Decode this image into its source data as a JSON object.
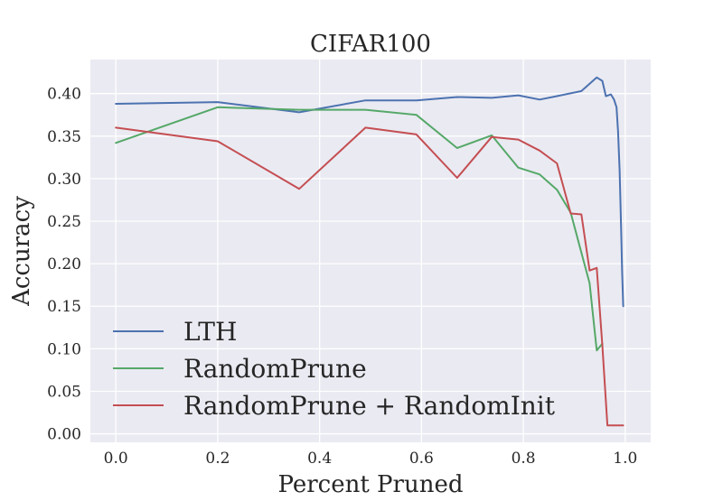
{
  "chart_data": {
    "type": "line",
    "title": "CIFAR100",
    "xlabel": "Percent Pruned",
    "ylabel": "Accuracy",
    "xlim": [
      -0.05,
      1.05
    ],
    "ylim": [
      -0.01,
      0.44
    ],
    "xticks": [
      0.0,
      0.2,
      0.4,
      0.6,
      0.8,
      1.0
    ],
    "xtick_labels": [
      "0.0",
      "0.2",
      "0.4",
      "0.6",
      "0.8",
      "1.0"
    ],
    "yticks": [
      0.0,
      0.05,
      0.1,
      0.15,
      0.2,
      0.25,
      0.3,
      0.35,
      0.4
    ],
    "ytick_labels": [
      "0.00",
      "0.05",
      "0.10",
      "0.15",
      "0.20",
      "0.25",
      "0.30",
      "0.35",
      "0.40"
    ],
    "grid": true,
    "legend_position": "lower-left",
    "background": "#eaeaf2",
    "series": [
      {
        "name": "LTH",
        "color": "#4c72b0",
        "x": [
          0.0,
          0.2,
          0.36,
          0.49,
          0.59,
          0.67,
          0.738,
          0.79,
          0.832,
          0.866,
          0.914,
          0.944,
          0.955,
          0.962,
          0.972,
          0.978,
          0.983,
          0.986,
          0.989,
          0.992,
          0.994,
          0.996
        ],
        "y": [
          0.388,
          0.39,
          0.378,
          0.392,
          0.392,
          0.396,
          0.395,
          0.398,
          0.393,
          0.397,
          0.403,
          0.419,
          0.415,
          0.397,
          0.399,
          0.393,
          0.384,
          0.355,
          0.31,
          0.24,
          0.19,
          0.15
        ]
      },
      {
        "name": "RandomPrune",
        "color": "#55a868",
        "x": [
          0.0,
          0.2,
          0.36,
          0.49,
          0.59,
          0.67,
          0.738,
          0.79,
          0.832,
          0.866,
          0.893,
          0.914,
          0.93,
          0.944,
          0.955
        ],
        "y": [
          0.342,
          0.384,
          0.381,
          0.381,
          0.375,
          0.336,
          0.351,
          0.313,
          0.305,
          0.287,
          0.26,
          0.213,
          0.177,
          0.098,
          0.106
        ]
      },
      {
        "name": "RandomPrune + RandomInit",
        "color": "#c44e52",
        "x": [
          0.0,
          0.2,
          0.36,
          0.49,
          0.59,
          0.67,
          0.738,
          0.79,
          0.832,
          0.866,
          0.893,
          0.914,
          0.93,
          0.944,
          0.955,
          0.965,
          0.978,
          0.996
        ],
        "y": [
          0.36,
          0.344,
          0.288,
          0.36,
          0.352,
          0.301,
          0.349,
          0.346,
          0.333,
          0.318,
          0.259,
          0.258,
          0.192,
          0.195,
          0.104,
          0.01,
          0.01,
          0.01
        ]
      }
    ]
  }
}
